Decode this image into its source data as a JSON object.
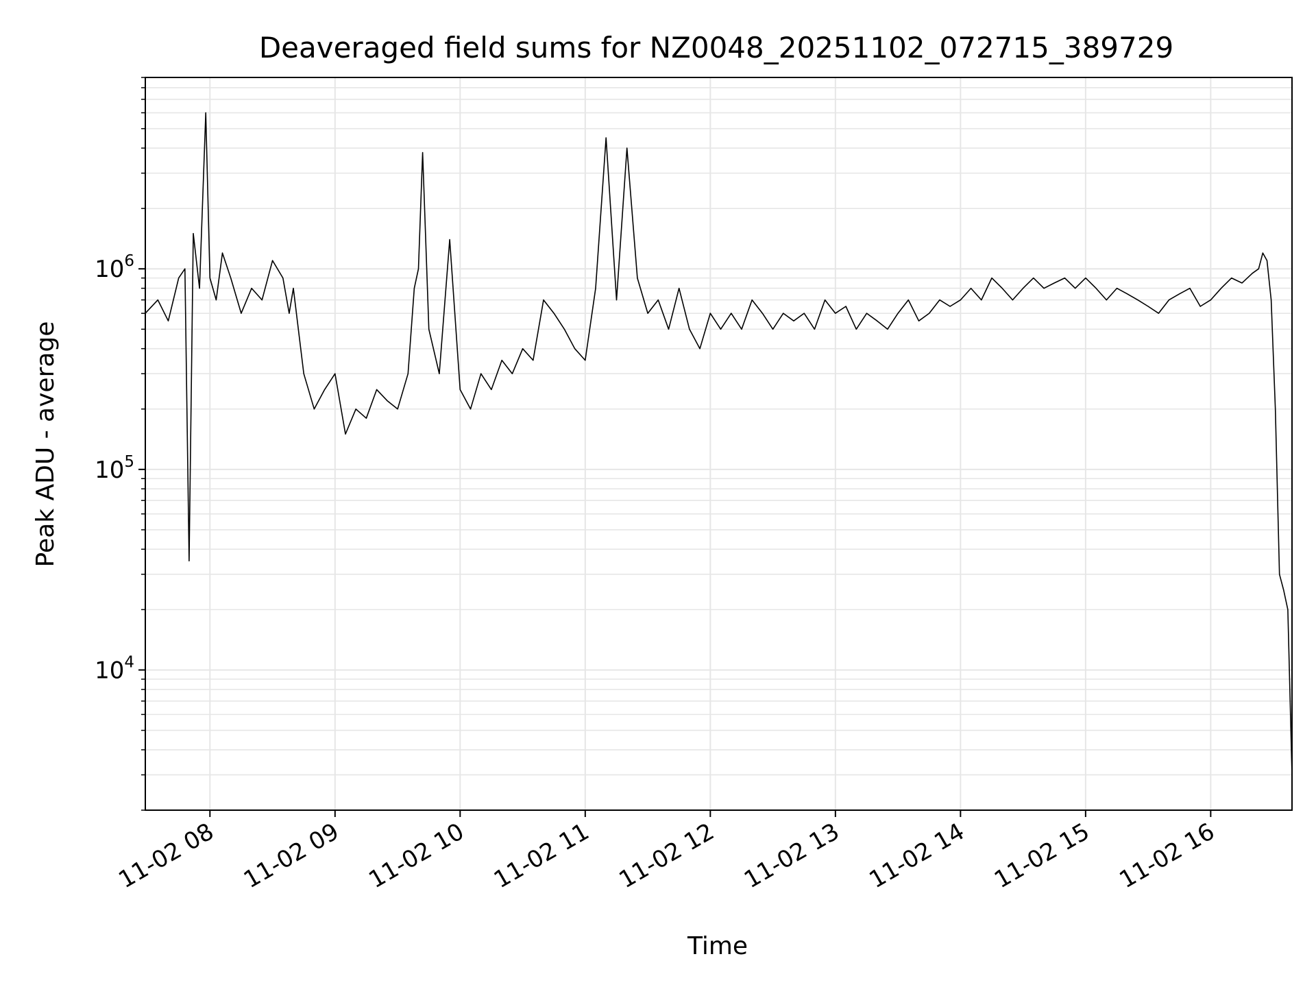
{
  "chart_data": {
    "type": "line",
    "title": "Deaveraged field sums for NZ0048_20251102_072715_389729",
    "xlabel": "Time",
    "ylabel": "Peak ADU - average",
    "yscale": "log",
    "xlim": [
      "11-02 07:29",
      "11-02 16:39"
    ],
    "ylim": [
      2000,
      9000000
    ],
    "grid": true,
    "x_ticks": [
      {
        "time": "11-02 08:00",
        "label": "11-02 08"
      },
      {
        "time": "11-02 09:00",
        "label": "11-02 09"
      },
      {
        "time": "11-02 10:00",
        "label": "11-02 10"
      },
      {
        "time": "11-02 11:00",
        "label": "11-02 11"
      },
      {
        "time": "11-02 12:00",
        "label": "11-02 12"
      },
      {
        "time": "11-02 13:00",
        "label": "11-02 13"
      },
      {
        "time": "11-02 14:00",
        "label": "11-02 14"
      },
      {
        "time": "11-02 15:00",
        "label": "11-02 15"
      },
      {
        "time": "11-02 16:00",
        "label": "11-02 16"
      }
    ],
    "y_ticks": [
      {
        "value": 10000,
        "base": "10",
        "exp": "4"
      },
      {
        "value": 100000,
        "base": "10",
        "exp": "5"
      },
      {
        "value": 1000000,
        "base": "10",
        "exp": "6"
      }
    ],
    "series": [
      {
        "color": "#000000",
        "x": [
          "11-02 07:29",
          "11-02 07:35",
          "11-02 07:40",
          "11-02 07:45",
          "11-02 07:48",
          "11-02 07:50",
          "11-02 07:52",
          "11-02 07:55",
          "11-02 07:58",
          "11-02 08:00",
          "11-02 08:03",
          "11-02 08:06",
          "11-02 08:10",
          "11-02 08:15",
          "11-02 08:20",
          "11-02 08:25",
          "11-02 08:30",
          "11-02 08:35",
          "11-02 08:38",
          "11-02 08:40",
          "11-02 08:45",
          "11-02 08:50",
          "11-02 08:55",
          "11-02 09:00",
          "11-02 09:05",
          "11-02 09:10",
          "11-02 09:15",
          "11-02 09:20",
          "11-02 09:25",
          "11-02 09:30",
          "11-02 09:35",
          "11-02 09:38",
          "11-02 09:40",
          "11-02 09:42",
          "11-02 09:45",
          "11-02 09:50",
          "11-02 09:55",
          "11-02 10:00",
          "11-02 10:05",
          "11-02 10:10",
          "11-02 10:15",
          "11-02 10:20",
          "11-02 10:25",
          "11-02 10:30",
          "11-02 10:35",
          "11-02 10:40",
          "11-02 10:45",
          "11-02 10:50",
          "11-02 10:55",
          "11-02 11:00",
          "11-02 11:05",
          "11-02 11:10",
          "11-02 11:15",
          "11-02 11:20",
          "11-02 11:25",
          "11-02 11:30",
          "11-02 11:35",
          "11-02 11:40",
          "11-02 11:45",
          "11-02 11:50",
          "11-02 11:55",
          "11-02 12:00",
          "11-02 12:05",
          "11-02 12:10",
          "11-02 12:15",
          "11-02 12:20",
          "11-02 12:25",
          "11-02 12:30",
          "11-02 12:35",
          "11-02 12:40",
          "11-02 12:45",
          "11-02 12:50",
          "11-02 12:55",
          "11-02 13:00",
          "11-02 13:05",
          "11-02 13:10",
          "11-02 13:15",
          "11-02 13:20",
          "11-02 13:25",
          "11-02 13:30",
          "11-02 13:35",
          "11-02 13:40",
          "11-02 13:45",
          "11-02 13:50",
          "11-02 13:55",
          "11-02 14:00",
          "11-02 14:05",
          "11-02 14:10",
          "11-02 14:15",
          "11-02 14:20",
          "11-02 14:25",
          "11-02 14:30",
          "11-02 14:35",
          "11-02 14:40",
          "11-02 14:45",
          "11-02 14:50",
          "11-02 14:55",
          "11-02 15:00",
          "11-02 15:05",
          "11-02 15:10",
          "11-02 15:15",
          "11-02 15:20",
          "11-02 15:25",
          "11-02 15:30",
          "11-02 15:35",
          "11-02 15:40",
          "11-02 15:45",
          "11-02 15:50",
          "11-02 15:55",
          "11-02 16:00",
          "11-02 16:05",
          "11-02 16:10",
          "11-02 16:15",
          "11-02 16:20",
          "11-02 16:23",
          "11-02 16:25",
          "11-02 16:27",
          "11-02 16:29",
          "11-02 16:31",
          "11-02 16:33",
          "11-02 16:35",
          "11-02 16:37",
          "11-02 16:39"
        ],
        "y": [
          600000,
          700000,
          550000,
          900000,
          1000000,
          35000,
          1500000,
          800000,
          6000000,
          900000,
          700000,
          1200000,
          900000,
          600000,
          800000,
          700000,
          1100000,
          900000,
          600000,
          800000,
          300000,
          200000,
          250000,
          300000,
          150000,
          200000,
          180000,
          250000,
          220000,
          200000,
          300000,
          800000,
          1000000,
          3800000,
          500000,
          300000,
          1400000,
          250000,
          200000,
          300000,
          250000,
          350000,
          300000,
          400000,
          350000,
          700000,
          600000,
          500000,
          400000,
          350000,
          800000,
          4500000,
          700000,
          4000000,
          900000,
          600000,
          700000,
          500000,
          800000,
          500000,
          400000,
          600000,
          500000,
          600000,
          500000,
          700000,
          600000,
          500000,
          600000,
          550000,
          600000,
          500000,
          700000,
          600000,
          650000,
          500000,
          600000,
          550000,
          500000,
          600000,
          700000,
          550000,
          600000,
          700000,
          650000,
          700000,
          800000,
          700000,
          900000,
          800000,
          700000,
          800000,
          900000,
          800000,
          850000,
          900000,
          800000,
          900000,
          800000,
          700000,
          800000,
          750000,
          700000,
          650000,
          600000,
          700000,
          750000,
          800000,
          650000,
          700000,
          800000,
          900000,
          850000,
          950000,
          1000000,
          1200000,
          1100000,
          700000,
          200000,
          30000,
          25000,
          20000,
          3000
        ]
      }
    ]
  }
}
